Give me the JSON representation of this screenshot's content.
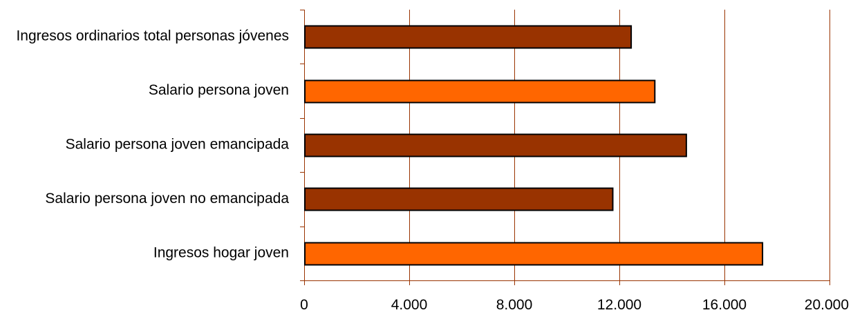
{
  "chart_data": {
    "type": "bar",
    "orientation": "horizontal",
    "title": "",
    "xlabel": "",
    "ylabel": "",
    "categories": [
      "Ingresos ordinarios total personas jóvenes",
      "Salario persona joven",
      "Salario persona joven emancipada",
      "Salario persona joven no emancipada",
      "Ingresos hogar joven"
    ],
    "values": [
      12450,
      13350,
      14550,
      11750,
      17450
    ],
    "bar_colors": [
      "#993300",
      "#ff6600",
      "#993300",
      "#993300",
      "#ff6600"
    ],
    "xlim": [
      0,
      20000
    ],
    "xticks": [
      0,
      4000,
      8000,
      12000,
      16000,
      20000
    ],
    "xtick_labels": [
      "0",
      "4.000",
      "8.000",
      "12.000",
      "16.000",
      "20.000"
    ],
    "grid": "vertical",
    "grid_color": "#993300",
    "bar_outline_color": "#000000",
    "legend": "none"
  }
}
